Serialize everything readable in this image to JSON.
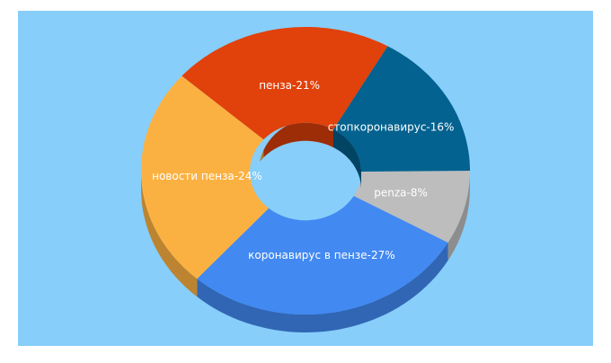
{
  "chart_data": {
    "type": "donut3d",
    "values": [
      8,
      27,
      24,
      21,
      16
    ],
    "value_labels": [
      "penza-8%",
      "коронавирус в пензе-27%",
      "новости пенза-24%",
      "пенза-21%",
      "стопкоронавирус-16%"
    ],
    "colors": [
      "#bdbdbd",
      "#4289f2",
      "#fbb141",
      "#e1410a",
      "#03628f"
    ],
    "label_colors": [
      "#ffffff",
      "#ffffff",
      "#ffffff",
      "#ffffff",
      "#ffffff"
    ]
  }
}
